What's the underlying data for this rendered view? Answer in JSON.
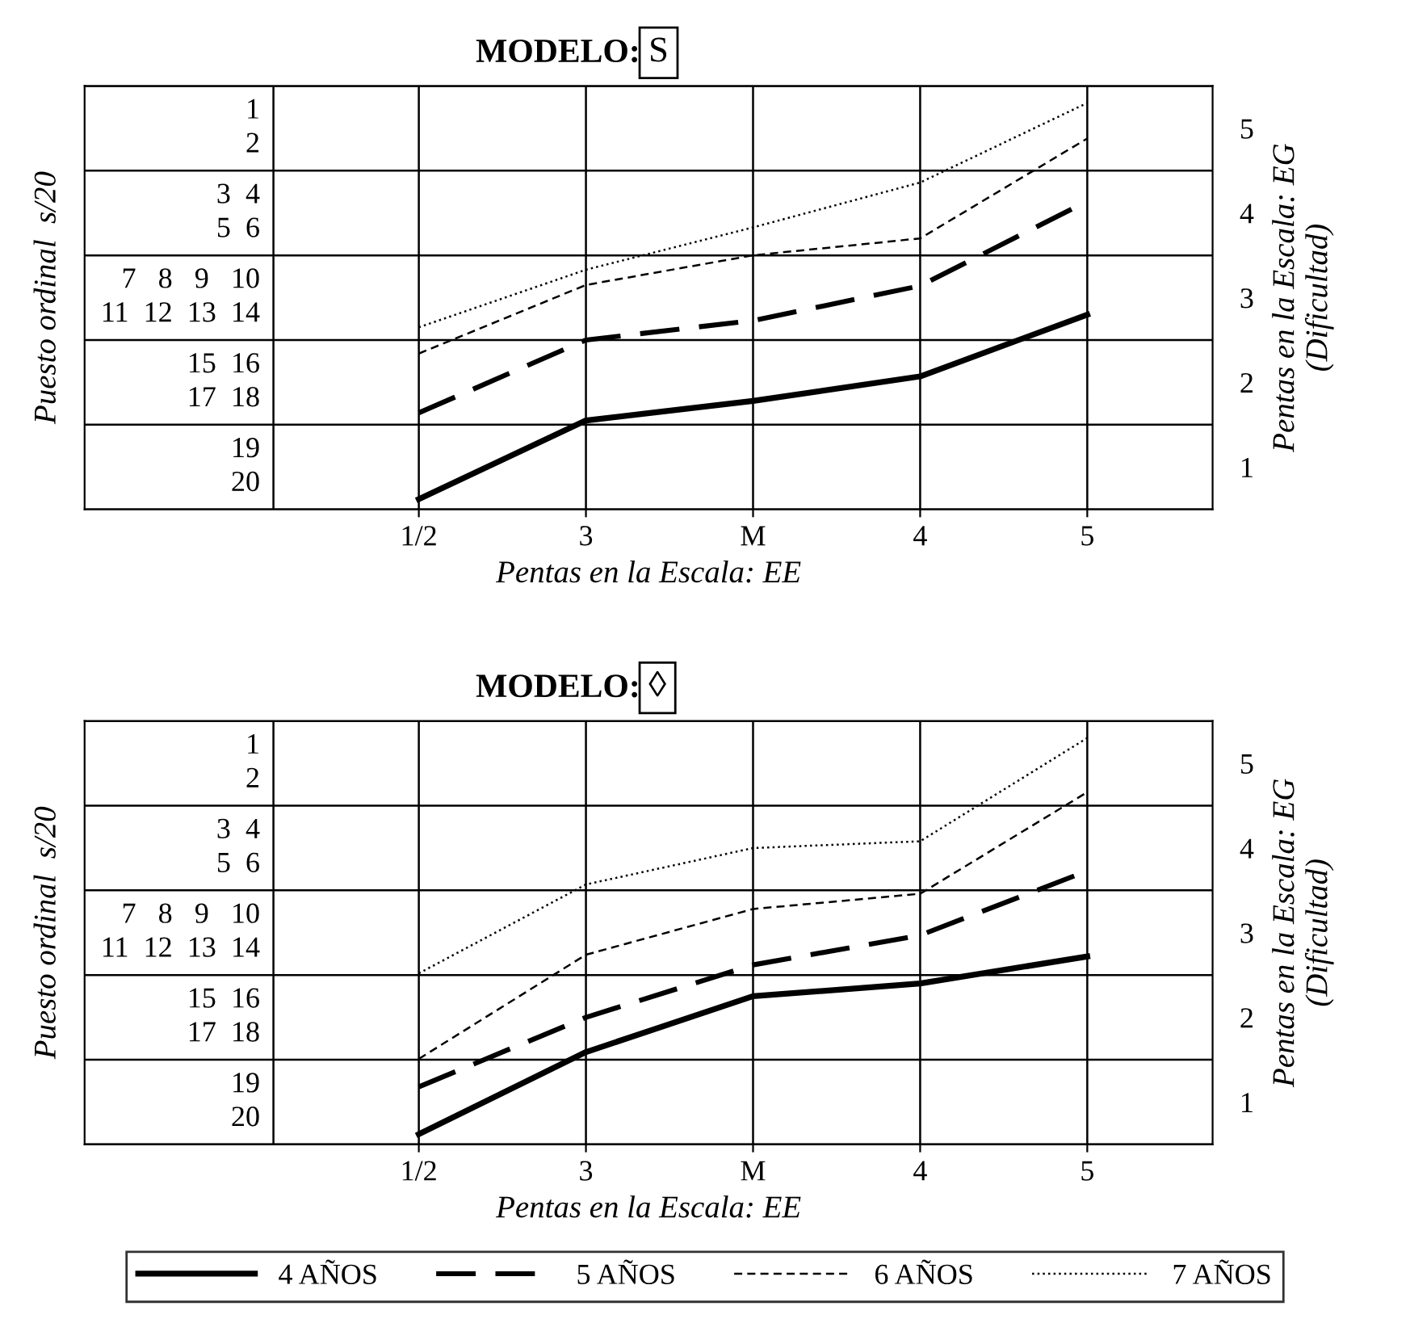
{
  "chart_data": [
    {
      "type": "line",
      "title": "MODELO:",
      "subtitle": "S",
      "xlabel": "Pentas en la Escala: EE",
      "ylabel": "Pentas en la Escala: EG\n(Dificultad)",
      "annotations": [
        "Puesto ordinal  s/20",
        "1",
        "2",
        "3  4",
        "5  6",
        "7   8   9   10",
        "11  12  13  14",
        "15  16",
        "17  18",
        "19",
        "20"
      ],
      "categories": [
        "1/2",
        "3",
        "M",
        "4",
        "5"
      ],
      "ylim": [
        0.5,
        5.5
      ],
      "yticks": [
        1,
        2,
        3,
        4,
        5
      ],
      "grid": true,
      "legend": false,
      "marker": "none",
      "series": [
        {
          "color": "#000000",
          "line_style": "solid",
          "values": [
            0.62,
            1.55,
            1.78,
            2.07,
            2.8
          ]
        },
        {
          "color": "#000000",
          "line_style": "dashed",
          "values": [
            1.64,
            2.5,
            2.73,
            3.14,
            4.14
          ]
        },
        {
          "color": "#000000",
          "line_style": "dashed",
          "values": [
            2.34,
            3.15,
            3.5,
            3.7,
            4.88
          ]
        },
        {
          "color": "#000000",
          "line_style": "dotted",
          "values": [
            2.65,
            3.33,
            3.83,
            4.36,
            5.3
          ]
        }
      ]
    },
    {
      "type": "line",
      "title": "MODELO:",
      "subtitle": "◊",
      "xlabel": "Pentas en la Escala: EE",
      "ylabel": "Pentas en la Escala: EG\n(Dificultad)",
      "annotations": [
        "Puesto ordinal  s/20",
        "1",
        "2",
        "3  4",
        "5  6",
        "7   8   9   10",
        "11  12  13  14",
        "15  16",
        "17  18",
        "19",
        "20"
      ],
      "categories": [
        "1/2",
        "3",
        "M",
        "4",
        "5"
      ],
      "ylim": [
        0.5,
        5.5
      ],
      "yticks": [
        1,
        2,
        3,
        4,
        5
      ],
      "grid": true,
      "legend": "bottom",
      "marker": "none",
      "series": [
        {
          "name": "4 AÑOS",
          "color": "#000000",
          "line_style": "solid",
          "values": [
            0.62,
            1.59,
            2.25,
            2.4,
            2.72
          ]
        },
        {
          "name": "5 AÑOS",
          "color": "#000000",
          "line_style": "dashed",
          "values": [
            1.18,
            2.0,
            2.62,
            2.97,
            3.73
          ]
        },
        {
          "name": "6 AÑOS",
          "color": "#000000",
          "line_style": "dashed",
          "values": [
            1.51,
            2.74,
            3.28,
            3.46,
            4.66
          ]
        },
        {
          "name": "7 AÑOS",
          "color": "#000000",
          "line_style": "dotted",
          "values": [
            2.52,
            3.57,
            4.0,
            4.08,
            5.3
          ]
        }
      ]
    }
  ]
}
